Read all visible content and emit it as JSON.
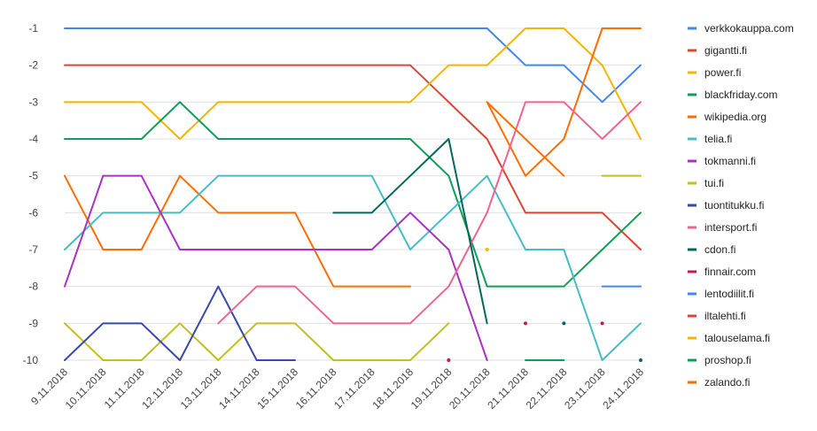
{
  "chart_data": {
    "type": "line",
    "x": [
      "9.11.2018",
      "10.11.2018",
      "11.11.2018",
      "12.11.2018",
      "13.11.2018",
      "14.11.2018",
      "15.11.2018",
      "16.11.2018",
      "17.11.2018",
      "18.11.2018",
      "19.11.2018",
      "20.11.2018",
      "21.11.2018",
      "22.11.2018",
      "23.11.2018",
      "24.11.2018"
    ],
    "y_ticks": [
      "-1",
      "-2",
      "-3",
      "-4",
      "-5",
      "-6",
      "-7",
      "-8",
      "-9",
      "-10"
    ],
    "ylim": [
      -10,
      -1
    ],
    "grid": true,
    "legend_position": "right",
    "series": [
      {
        "name": "verkkokauppa.com",
        "color": "#4285f4",
        "values": [
          -1,
          -1,
          -1,
          -1,
          -1,
          -1,
          -1,
          -1,
          -1,
          -1,
          -1,
          -1,
          -2,
          -2,
          -3,
          -2
        ]
      },
      {
        "name": "gigantti.fi",
        "color": "#db4437",
        "values": [
          -2,
          -2,
          -2,
          -2,
          -2,
          -2,
          -2,
          -2,
          -2,
          -2,
          -3,
          -4,
          -6,
          -6,
          -6,
          -7
        ]
      },
      {
        "name": "power.fi",
        "color": "#f4b400",
        "values": [
          -3,
          -3,
          -3,
          -4,
          -3,
          -3,
          -3,
          -3,
          -3,
          -3,
          -2,
          -2,
          -1,
          -1,
          -2,
          -4
        ]
      },
      {
        "name": "blackfriday.com",
        "color": "#0f9d58",
        "values": [
          -4,
          -4,
          -4,
          -3,
          -4,
          -4,
          -4,
          -4,
          -4,
          -4,
          -5,
          -8,
          -8,
          -8,
          -7,
          -6
        ]
      },
      {
        "name": "wikipedia.org",
        "color": "#ff6d00",
        "values": [
          -5,
          -7,
          -7,
          -5,
          -6,
          -6,
          -6,
          -8,
          -8,
          -8,
          null,
          -3,
          -5,
          -4,
          -1,
          -1
        ]
      },
      {
        "name": "telia.fi",
        "color": "#46bdc6",
        "values": [
          -7,
          -6,
          -6,
          -6,
          -5,
          -5,
          -5,
          -5,
          -5,
          -7,
          -6,
          -5,
          -7,
          -7,
          -10,
          -9
        ]
      },
      {
        "name": "tokmanni.fi",
        "color": "#ab30c4",
        "values": [
          -8,
          -5,
          -5,
          -7,
          -7,
          -7,
          -7,
          -7,
          -7,
          -6,
          -7,
          -10,
          null,
          null,
          null,
          null
        ]
      },
      {
        "name": "tui.fi",
        "color": "#c3be22",
        "values": [
          -9,
          -10,
          -10,
          -9,
          -10,
          -9,
          -9,
          -10,
          -10,
          -10,
          -9,
          null,
          null,
          null,
          -5,
          -5
        ]
      },
      {
        "name": "tuontitukku.fi",
        "color": "#3949ab",
        "values": [
          -10,
          -9,
          -9,
          -10,
          -8,
          -10,
          -10,
          null,
          null,
          null,
          null,
          null,
          null,
          null,
          null,
          null
        ]
      },
      {
        "name": "intersport.fi",
        "color": "#f06292",
        "values": [
          null,
          null,
          null,
          null,
          -9,
          -8,
          -8,
          -9,
          -9,
          -9,
          -8,
          -6,
          -3,
          -3,
          -4,
          -3
        ]
      },
      {
        "name": "cdon.fi",
        "color": "#00695c",
        "values": [
          null,
          null,
          null,
          null,
          null,
          null,
          null,
          -6,
          -6,
          -5,
          -4,
          -9,
          null,
          -9,
          null,
          -10
        ]
      },
      {
        "name": "finnair.com",
        "color": "#c2185b",
        "values": [
          null,
          null,
          null,
          null,
          null,
          null,
          null,
          null,
          null,
          null,
          -10,
          null,
          -9,
          null,
          -9,
          null
        ]
      },
      {
        "name": "lentodiilit.fi",
        "color": "#4285f4",
        "values": [
          null,
          null,
          null,
          null,
          null,
          null,
          null,
          null,
          null,
          null,
          null,
          null,
          null,
          null,
          -8,
          -8
        ]
      },
      {
        "name": "iltalehti.fi",
        "color": "#db4437",
        "values": [
          null,
          null,
          null,
          null,
          null,
          null,
          null,
          null,
          null,
          null,
          null,
          null,
          null,
          null,
          null,
          null
        ]
      },
      {
        "name": "talouselama.fi",
        "color": "#f4b400",
        "values": [
          null,
          null,
          null,
          null,
          null,
          null,
          null,
          null,
          null,
          null,
          null,
          -7,
          null,
          null,
          null,
          null
        ]
      },
      {
        "name": "proshop.fi",
        "color": "#0f9d58",
        "values": [
          null,
          null,
          null,
          null,
          null,
          null,
          null,
          null,
          null,
          null,
          null,
          null,
          -10,
          -10,
          null,
          null
        ]
      },
      {
        "name": "zalando.fi",
        "color": "#ff6d00",
        "values": [
          null,
          null,
          null,
          null,
          null,
          null,
          null,
          null,
          null,
          null,
          null,
          -3,
          -4,
          -5,
          null,
          null
        ]
      }
    ]
  }
}
